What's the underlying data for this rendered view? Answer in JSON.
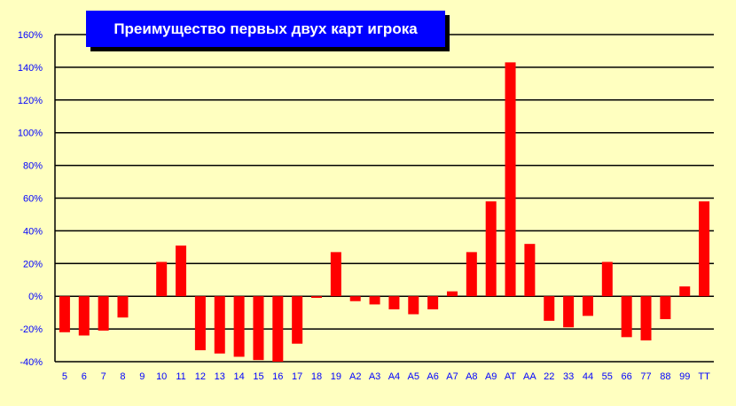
{
  "chart_data": {
    "type": "bar",
    "title": "Преимущество первых двух карт игрока",
    "xlabel": "",
    "ylabel": "",
    "ylim": [
      -40,
      160
    ],
    "yticks": [
      -40,
      -20,
      0,
      20,
      40,
      60,
      80,
      100,
      120,
      140,
      160
    ],
    "ytick_format": "%",
    "grid": true,
    "categories": [
      "5",
      "6",
      "7",
      "8",
      "9",
      "10",
      "11",
      "12",
      "13",
      "14",
      "15",
      "16",
      "17",
      "18",
      "19",
      "A2",
      "A3",
      "A4",
      "A5",
      "A6",
      "A7",
      "A8",
      "A9",
      "AT",
      "AA",
      "22",
      "33",
      "44",
      "55",
      "66",
      "77",
      "88",
      "99",
      "TT"
    ],
    "values": [
      -22,
      -24,
      -21,
      -13,
      0,
      21,
      31,
      -33,
      -35,
      -37,
      -39,
      -40,
      -29,
      -1,
      27,
      -3,
      -5,
      -8,
      -11,
      -8,
      3,
      27,
      58,
      143,
      32,
      -15,
      -19,
      -12,
      21,
      -25,
      -27,
      -14,
      6,
      58
    ],
    "colors": {
      "bar": "#FF0000",
      "background": "#FFFFC0",
      "title_box": "#0000FF",
      "tick_labels": "#0000FF",
      "grid": "#000000"
    }
  }
}
